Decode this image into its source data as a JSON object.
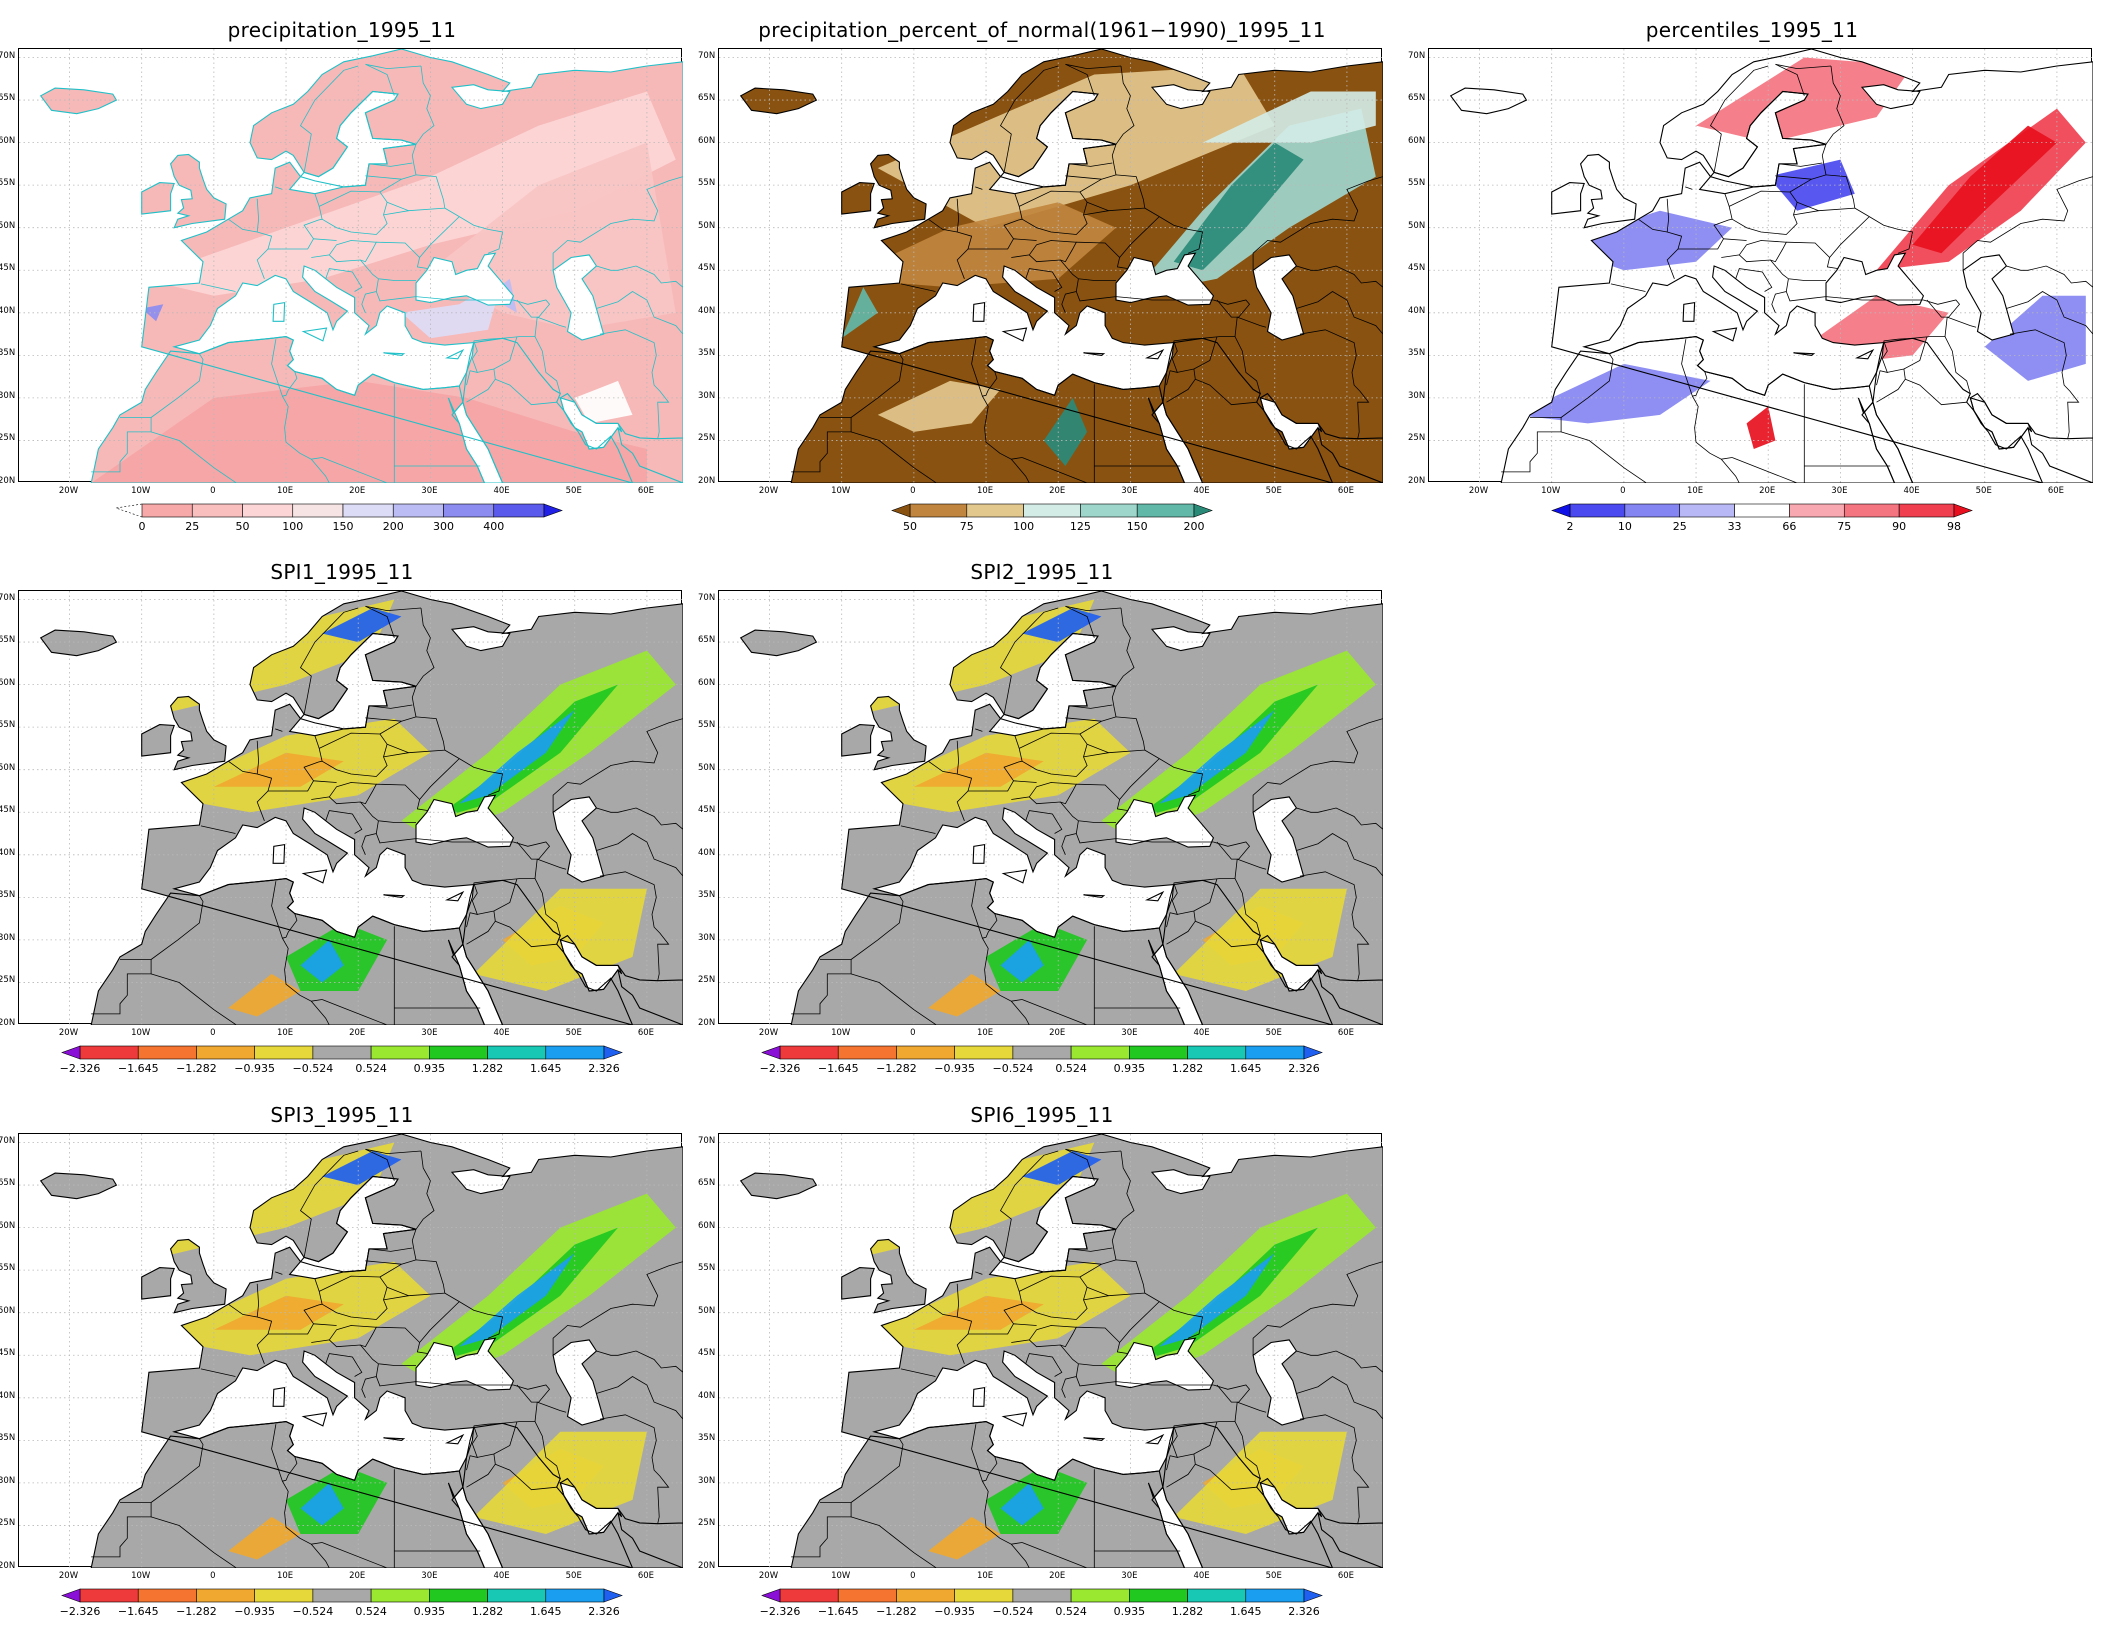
{
  "panels": [
    {
      "id": "p1",
      "title": "precipitation_1995_11",
      "style": "precip",
      "colorbar": {
        "labels": [
          "0",
          "25",
          "50",
          "100",
          "150",
          "200",
          "300",
          "400"
        ],
        "colors": [
          "#f7a8a8",
          "#f9bebe",
          "#fcd6d6",
          "#f6e4e4",
          "#dcdcf6",
          "#bcbcf4",
          "#8c8cf0",
          "#5a5aec",
          "#2020e6"
        ],
        "left_arrow": false,
        "right_arrow": true,
        "dashed_left": true
      }
    },
    {
      "id": "p2",
      "title": "precipitation_percent_of_normal(1961−1990)_1995_11",
      "style": "percent",
      "colorbar": {
        "labels": [
          "50",
          "75",
          "100",
          "125",
          "150",
          "200"
        ],
        "colors": [
          "#8a5210",
          "#c0853e",
          "#e3c88e",
          "#d3ece6",
          "#9ed6cc",
          "#62b8a8",
          "#2a8a78"
        ],
        "left_arrow": true,
        "right_arrow": true,
        "dashed_left": false
      }
    },
    {
      "id": "p3",
      "title": "percentiles_1995_11",
      "style": "pctile",
      "colorbar": {
        "labels": [
          "2",
          "10",
          "25",
          "33",
          "66",
          "75",
          "90",
          "98"
        ],
        "colors": [
          "#1010e8",
          "#4a4af0",
          "#8484f2",
          "#b8b8f6",
          "#ffffff",
          "#f8a8b0",
          "#f47480",
          "#f04050",
          "#e8101e"
        ],
        "left_arrow": true,
        "right_arrow": true,
        "dashed_left": false
      }
    },
    {
      "id": "p4",
      "title": "SPI1_1995_11",
      "style": "spi",
      "colorbar": {
        "labels": [
          "−2.326",
          "−1.645",
          "−1.282",
          "−0.935",
          "−0.524",
          "0.524",
          "0.935",
          "1.282",
          "1.645",
          "2.326"
        ],
        "colors": [
          "#8a10d8",
          "#ee3a3a",
          "#f47430",
          "#f0a830",
          "#e6d83a",
          "#a8a8a8",
          "#9ae830",
          "#20c820",
          "#18c8b4",
          "#1a9ef0",
          "#2060f0"
        ],
        "left_arrow": true,
        "right_arrow": true,
        "dashed_left": false
      }
    },
    {
      "id": "p5",
      "title": "SPI2_1995_11",
      "style": "spi",
      "colorbar": {
        "labels": [
          "−2.326",
          "−1.645",
          "−1.282",
          "−0.935",
          "−0.524",
          "0.524",
          "0.935",
          "1.282",
          "1.645",
          "2.326"
        ],
        "colors": [
          "#8a10d8",
          "#ee3a3a",
          "#f47430",
          "#f0a830",
          "#e6d83a",
          "#a8a8a8",
          "#9ae830",
          "#20c820",
          "#18c8b4",
          "#1a9ef0",
          "#2060f0"
        ],
        "left_arrow": true,
        "right_arrow": true,
        "dashed_left": false
      }
    },
    {
      "id": "p6",
      "title": "SPI3_1995_11",
      "style": "spi",
      "colorbar": {
        "labels": [
          "−2.326",
          "−1.645",
          "−1.282",
          "−0.935",
          "−0.524",
          "0.524",
          "0.935",
          "1.282",
          "1.645",
          "2.326"
        ],
        "colors": [
          "#8a10d8",
          "#ee3a3a",
          "#f47430",
          "#f0a830",
          "#e6d83a",
          "#a8a8a8",
          "#9ae830",
          "#20c820",
          "#18c8b4",
          "#1a9ef0",
          "#2060f0"
        ],
        "left_arrow": true,
        "right_arrow": true,
        "dashed_left": false
      }
    },
    {
      "id": "p7",
      "title": "SPI6_1995_11",
      "style": "spi",
      "colorbar": {
        "labels": [
          "−2.326",
          "−1.645",
          "−1.282",
          "−0.935",
          "−0.524",
          "0.524",
          "0.935",
          "1.282",
          "1.645",
          "2.326"
        ],
        "colors": [
          "#8a10d8",
          "#ee3a3a",
          "#f47430",
          "#f0a830",
          "#e6d83a",
          "#a8a8a8",
          "#9ae830",
          "#20c820",
          "#18c8b4",
          "#1a9ef0",
          "#2060f0"
        ],
        "left_arrow": true,
        "right_arrow": true,
        "dashed_left": false
      }
    }
  ],
  "axes": {
    "lat_labels": [
      "70N",
      "65N",
      "60N",
      "55N",
      "50N",
      "45N",
      "40N",
      "35N",
      "30N",
      "25N",
      "20N"
    ],
    "lon_labels": [
      "20W",
      "10W",
      "0",
      "10E",
      "20E",
      "30E",
      "40E",
      "50E",
      "60E"
    ]
  },
  "colors": {
    "ocean": "#ffffff",
    "border": "#000000",
    "border_precip": "#20c0c8",
    "grid": "#b8b8b8"
  }
}
